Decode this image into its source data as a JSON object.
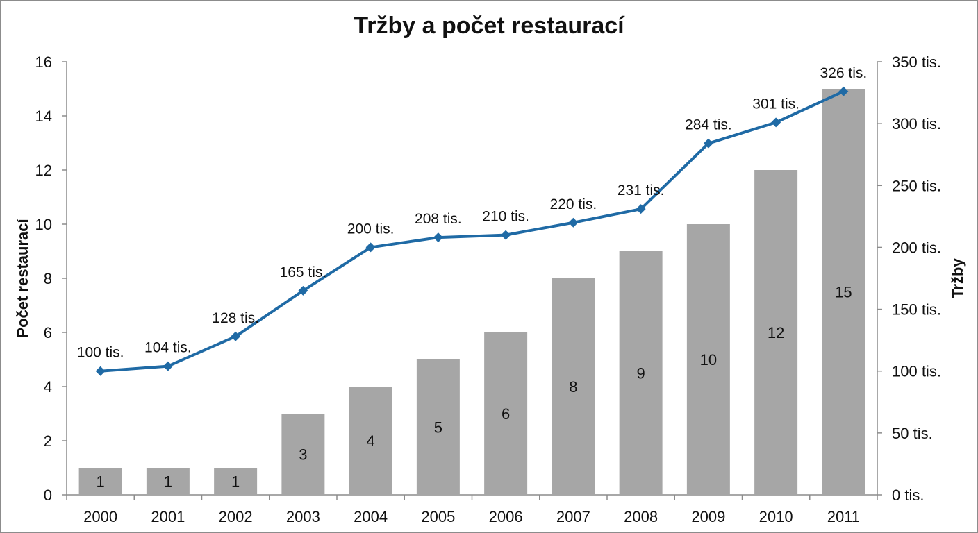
{
  "chart_data": {
    "type": "bar",
    "title": "Tržby a počet restaurací",
    "categories": [
      "2000",
      "2001",
      "2002",
      "2003",
      "2004",
      "2005",
      "2006",
      "2007",
      "2008",
      "2009",
      "2010",
      "2011"
    ],
    "bar_series": {
      "values": [
        1,
        1,
        1,
        3,
        4,
        5,
        6,
        8,
        9,
        10,
        12,
        15
      ],
      "color": "#a6a6a6"
    },
    "line_series": {
      "values": [
        100,
        104,
        128,
        165,
        200,
        208,
        210,
        220,
        231,
        284,
        301,
        326
      ],
      "labels": [
        "100 tis.",
        "104 tis.",
        "128 tis.",
        "165 tis.",
        "200 tis.",
        "208 tis.",
        "210 tis.",
        "220 tis.",
        "231 tis.",
        "284 tis.",
        "301 tis.",
        "326 tis."
      ],
      "color": "#1f6aa5"
    },
    "y_left": {
      "label": "Počet restaurací",
      "ylim": [
        0,
        16
      ],
      "ticks": [
        "0",
        "2",
        "4",
        "6",
        "8",
        "10",
        "12",
        "14",
        "16"
      ]
    },
    "y_right": {
      "label": "Tržby",
      "ylim": [
        0,
        350
      ],
      "ticks": [
        "0 tis.",
        "50 tis.",
        "100 tis.",
        "150 tis.",
        "200 tis.",
        "250 tis.",
        "300 tis.",
        "350 tis."
      ]
    },
    "grid": false,
    "legend": "none"
  }
}
